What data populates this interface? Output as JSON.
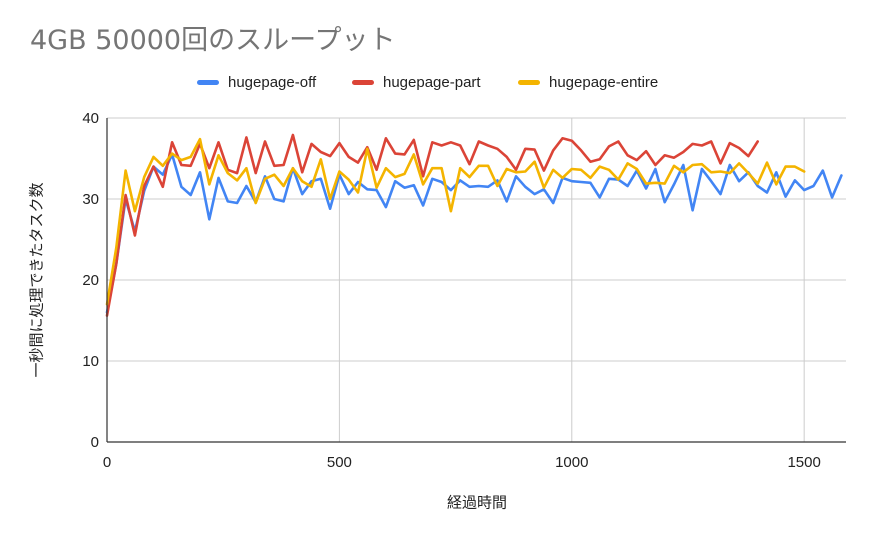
{
  "chart_data": {
    "type": "line",
    "title": "4GB 50000回のスループット",
    "xlabel": "経過時間",
    "ylabel": "一秒間に処理できたタスク数",
    "xlim": [
      0,
      1590
    ],
    "ylim": [
      0,
      40
    ],
    "x_ticks": [
      "0",
      "500",
      "1000",
      "1500"
    ],
    "y_ticks": [
      "0",
      "10",
      "20",
      "30",
      "40"
    ],
    "grid": true,
    "legend_position": "top",
    "series": [
      {
        "name": "hugepage-off",
        "color": "#4285F4",
        "x": [
          0,
          20,
          40,
          60,
          80,
          100,
          120,
          140,
          160,
          180,
          200,
          220,
          240,
          260,
          280,
          300,
          320,
          340,
          360,
          380,
          400,
          420,
          440,
          460,
          480,
          500,
          520,
          540,
          560,
          580,
          600,
          620,
          640,
          660,
          680,
          700,
          720,
          740,
          760,
          780,
          800,
          820,
          840,
          860,
          880,
          900,
          920,
          940,
          960,
          980,
          1000,
          1020,
          1040,
          1060,
          1080,
          1100,
          1120,
          1140,
          1160,
          1180,
          1200,
          1220,
          1240,
          1260,
          1280,
          1300,
          1320,
          1340,
          1360,
          1380,
          1400,
          1420,
          1440,
          1460,
          1480,
          1500,
          1520,
          1540,
          1560,
          1580
        ],
        "values": [
          16,
          22,
          30,
          26,
          31,
          34,
          33,
          35.5,
          31.5,
          30.5,
          33.3,
          27.5,
          32.6,
          29.7,
          29.5,
          31.6,
          29.6,
          32.8,
          30,
          29.7,
          33.8,
          30.6,
          32.2,
          32.5,
          28.8,
          33,
          30.6,
          32.1,
          31.2,
          31.1,
          29,
          32.2,
          31.4,
          31.7,
          29.2,
          32.5,
          32.1,
          31.1,
          32.3,
          31.5,
          31.6,
          31.5,
          32.3,
          29.7,
          32.8,
          31.5,
          30.6,
          31.2,
          29.5,
          32.6,
          32.2,
          32.1,
          32,
          30.2,
          32.5,
          32.4,
          31.6,
          33.5,
          31.3,
          33.7,
          29.6,
          31.8,
          34.2,
          28.6,
          33.7,
          32.2,
          30.6,
          34.2,
          32.2,
          33.3,
          31.6,
          30.8,
          33.3,
          30.3,
          32.3,
          31.1,
          31.6,
          33.5,
          30.2,
          32.9
        ]
      },
      {
        "name": "hugepage-part",
        "color": "#DB4437",
        "x": [
          0,
          20,
          40,
          60,
          80,
          100,
          120,
          140,
          160,
          180,
          200,
          220,
          240,
          260,
          280,
          300,
          320,
          340,
          360,
          380,
          400,
          420,
          440,
          460,
          480,
          500,
          520,
          540,
          560,
          580,
          600,
          620,
          640,
          660,
          680,
          700,
          720,
          740,
          760,
          780,
          800,
          820,
          840,
          860,
          880,
          900,
          920,
          940,
          960,
          980,
          1000,
          1020,
          1040,
          1060,
          1080,
          1100,
          1120,
          1140,
          1160,
          1180,
          1200,
          1220,
          1240,
          1260,
          1280,
          1300,
          1320,
          1340,
          1360,
          1380,
          1400
        ],
        "values": [
          15.6,
          22,
          30.5,
          25.5,
          31.6,
          34,
          31.5,
          37,
          34.2,
          34.1,
          36.8,
          33.8,
          37,
          33.6,
          33.2,
          37.6,
          33.2,
          37.1,
          34.1,
          34.2,
          37.9,
          33.3,
          36.8,
          35.8,
          35.3,
          36.9,
          35.2,
          34.5,
          36.4,
          33.6,
          37.5,
          35.6,
          35.5,
          37.3,
          32.8,
          37,
          36.6,
          37,
          36.6,
          34.3,
          37.1,
          36.6,
          36.2,
          35.2,
          33.6,
          36.2,
          36.1,
          33.5,
          36,
          37.5,
          37.2,
          36,
          34.6,
          34.9,
          36.5,
          37.1,
          35.4,
          34.8,
          35.9,
          34.2,
          35.4,
          35.1,
          35.8,
          36.8,
          36.6,
          37.1,
          34.4,
          36.9,
          36.3,
          35.3,
          37.1
        ]
      },
      {
        "name": "hugepage-entire",
        "color": "#F4B400",
        "x": [
          0,
          20,
          40,
          60,
          80,
          100,
          120,
          140,
          160,
          180,
          200,
          220,
          240,
          260,
          280,
          300,
          320,
          340,
          360,
          380,
          400,
          420,
          440,
          460,
          480,
          500,
          520,
          540,
          560,
          580,
          600,
          620,
          640,
          660,
          680,
          700,
          720,
          740,
          760,
          780,
          800,
          820,
          840,
          860,
          880,
          900,
          920,
          940,
          960,
          980,
          1000,
          1020,
          1040,
          1060,
          1080,
          1100,
          1120,
          1140,
          1160,
          1180,
          1200,
          1220,
          1240,
          1260,
          1280,
          1300,
          1320,
          1340,
          1360,
          1380,
          1400,
          1420,
          1440,
          1460,
          1480,
          1500
        ],
        "values": [
          17,
          24,
          33.5,
          28.5,
          32.7,
          35.2,
          34.1,
          35.6,
          34.8,
          35.2,
          37.4,
          31.8,
          35.4,
          33.2,
          32.3,
          33.8,
          29.5,
          32.5,
          33,
          31.6,
          33.8,
          32.2,
          31.5,
          34.9,
          30,
          33.4,
          32.4,
          30.8,
          36.2,
          31.4,
          33.8,
          32.7,
          33.1,
          35.5,
          31.8,
          33.8,
          33.8,
          28.5,
          33.8,
          32.7,
          34.1,
          34.1,
          31.6,
          33.7,
          33.3,
          33.4,
          34.6,
          31.4,
          33.6,
          32.6,
          33.7,
          33.6,
          32.6,
          34,
          33.6,
          32.4,
          34.4,
          33.7,
          31.9,
          32,
          31.9,
          34.1,
          33.3,
          34.2,
          34.3,
          33.3,
          33.4,
          33.2,
          34.4,
          33.2,
          31.9,
          34.5,
          31.8,
          34,
          34,
          33.4
        ]
      }
    ]
  }
}
